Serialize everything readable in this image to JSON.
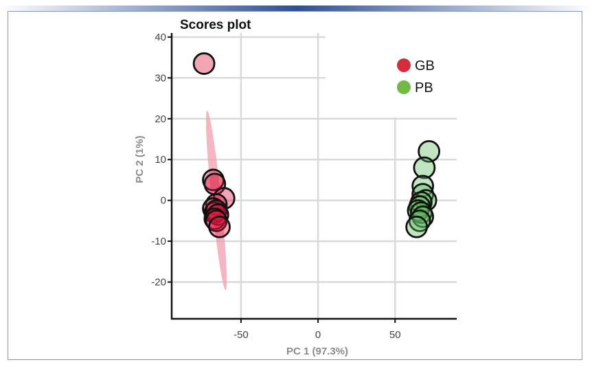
{
  "chart_data": {
    "type": "scatter",
    "title": "Scores plot",
    "xlabel": "PC 1 (97.3%)",
    "ylabel": "PC 2 (1%)",
    "xlim": [
      -95,
      90
    ],
    "ylim": [
      -29,
      41
    ],
    "xticks": [
      -50,
      0,
      50
    ],
    "yticks": [
      40,
      30,
      20,
      10,
      0,
      -10,
      -20
    ],
    "grid": true,
    "legend_position": "top-right",
    "series": [
      {
        "name": "GB",
        "color": "#d42e3c",
        "fill": "#dc143c",
        "points": [
          {
            "x": -74,
            "y": 33.5
          },
          {
            "x": -68,
            "y": 5
          },
          {
            "x": -67,
            "y": 4
          },
          {
            "x": -61,
            "y": 0.5
          },
          {
            "x": -66,
            "y": -1
          },
          {
            "x": -68,
            "y": -2
          },
          {
            "x": -67,
            "y": -3
          },
          {
            "x": -66,
            "y": -2.5
          },
          {
            "x": -65,
            "y": -3.5
          },
          {
            "x": -67,
            "y": -4.5
          },
          {
            "x": -66,
            "y": -5
          },
          {
            "x": -64,
            "y": -6.5
          }
        ],
        "ellipse": {
          "x_min": -72,
          "x_max": -60,
          "y_min": -22,
          "y_max": 22
        }
      },
      {
        "name": "PB",
        "color": "#72b845",
        "fill": "#5cb85c",
        "points": [
          {
            "x": 72,
            "y": 12
          },
          {
            "x": 69,
            "y": 8
          },
          {
            "x": 68,
            "y": 3.5
          },
          {
            "x": 68,
            "y": 1.5
          },
          {
            "x": 70,
            "y": 0
          },
          {
            "x": 67,
            "y": -0.5
          },
          {
            "x": 66,
            "y": -1.5
          },
          {
            "x": 65,
            "y": -2.5
          },
          {
            "x": 67,
            "y": -3
          },
          {
            "x": 68,
            "y": -4
          },
          {
            "x": 66,
            "y": -5
          },
          {
            "x": 64,
            "y": -6.5
          }
        ]
      }
    ]
  }
}
